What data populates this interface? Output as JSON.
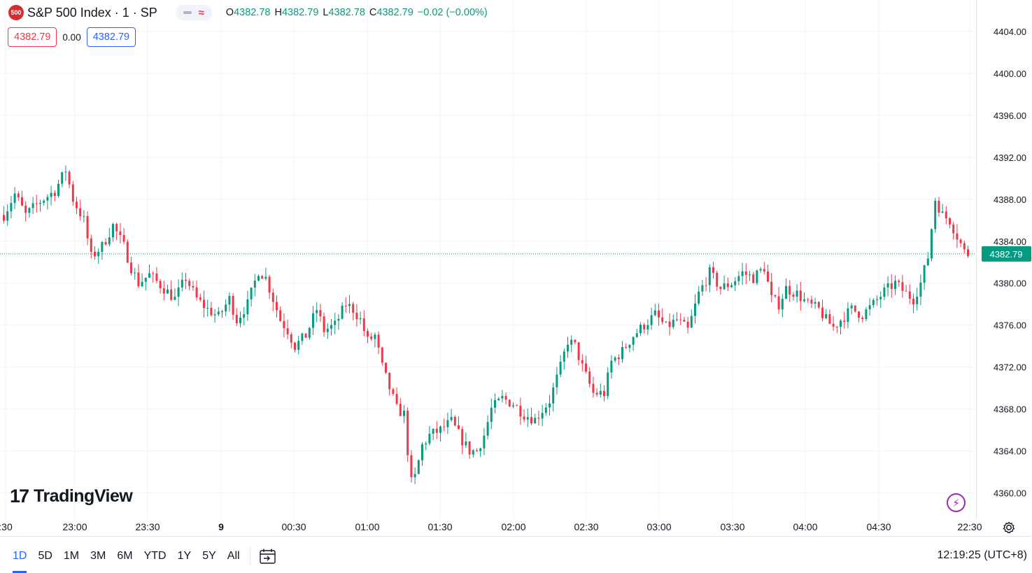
{
  "symbol": {
    "logo_text": "500",
    "name": "S&P 500 Index · 1 · SP",
    "ohlc": {
      "o_label": "O",
      "o": "4382.78",
      "h_label": "H",
      "h": "4382.79",
      "l_label": "L",
      "l": "4382.78",
      "c_label": "C",
      "c": "4382.79",
      "change": "−0.02 (−0.00%)"
    },
    "sell_price": "4382.79",
    "spread": "0.00",
    "buy_price": "4382.79"
  },
  "price_axis": {
    "ticks": [
      "4404.00",
      "4400.00",
      "4396.00",
      "4392.00",
      "4388.00",
      "4384.00",
      "4380.00",
      "4376.00",
      "4372.00",
      "4368.00",
      "4364.00",
      "4360.00"
    ],
    "last_price": "4382.79"
  },
  "time_axis": {
    "ticks": [
      ":30",
      "23:00",
      "23:30",
      "9",
      "00:30",
      "01:00",
      "01:30",
      "02:00",
      "02:30",
      "03:00",
      "03:30",
      "04:00",
      "04:30",
      "22:30"
    ]
  },
  "branding": {
    "logo_mark": "17",
    "name": "TradingView"
  },
  "bottom_bar": {
    "ranges": [
      "1D",
      "5D",
      "1M",
      "3M",
      "6M",
      "YTD",
      "1Y",
      "5Y",
      "All"
    ],
    "active_range": "1D",
    "clock": "12:19:25 (UTC+8)"
  },
  "colors": {
    "up": "#089981",
    "down": "#f23645",
    "grid": "#f0f3fa",
    "last_price_line": "#089981",
    "accent": "#2962ff"
  },
  "chart_data": {
    "type": "candlestick",
    "interval": "1 minute",
    "ylim": [
      4357.5,
      4407.0
    ],
    "x_ticks": [
      ":30",
      "23:00",
      "23:30",
      "9",
      "00:30",
      "01:00",
      "01:30",
      "02:00",
      "02:30",
      "03:00",
      "03:30",
      "04:00",
      "04:30",
      "22:30"
    ],
    "y_ticks": [
      4404,
      4400,
      4396,
      4392,
      4388,
      4384,
      4380,
      4376,
      4372,
      4368,
      4364,
      4360
    ],
    "last_price": 4382.79,
    "close_path": [
      [
        0,
        4386.5
      ],
      [
        3,
        4388.5
      ],
      [
        6,
        4386.5
      ],
      [
        10,
        4387.8
      ],
      [
        14,
        4388.8
      ],
      [
        17,
        4390.8
      ],
      [
        19,
        4388.0
      ],
      [
        22,
        4386.0
      ],
      [
        24,
        4382.5
      ],
      [
        27,
        4383.5
      ],
      [
        30,
        4385.5
      ],
      [
        33,
        4383.5
      ],
      [
        35,
        4381.5
      ],
      [
        37,
        4380.0
      ],
      [
        40,
        4380.8
      ],
      [
        44,
        4379.5
      ],
      [
        47,
        4378.5
      ],
      [
        50,
        4380.5
      ],
      [
        53,
        4378.5
      ],
      [
        56,
        4377.5
      ],
      [
        59,
        4376.8
      ],
      [
        62,
        4378.5
      ],
      [
        64,
        4376.5
      ],
      [
        67,
        4378.0
      ],
      [
        70,
        4381.2
      ],
      [
        72,
        4380.5
      ],
      [
        74,
        4378.5
      ],
      [
        76,
        4376.5
      ],
      [
        78,
        4375.5
      ],
      [
        80,
        4374.0
      ],
      [
        83,
        4375.0
      ],
      [
        86,
        4377.5
      ],
      [
        88,
        4375.5
      ],
      [
        91,
        4376.0
      ],
      [
        94,
        4378.0
      ],
      [
        96,
        4377.5
      ],
      [
        98,
        4376.5
      ],
      [
        100,
        4374.5
      ],
      [
        102,
        4375.0
      ],
      [
        104,
        4372.0
      ],
      [
        106,
        4370.0
      ],
      [
        108,
        4368.0
      ],
      [
        110,
        4367.5
      ],
      [
        111,
        4364.0
      ],
      [
        112,
        4361.0
      ],
      [
        113,
        4361.5
      ],
      [
        115,
        4364.5
      ],
      [
        117,
        4365.5
      ],
      [
        120,
        4366.0
      ],
      [
        123,
        4366.8
      ],
      [
        126,
        4365.0
      ],
      [
        128,
        4364.0
      ],
      [
        130,
        4364.0
      ],
      [
        132,
        4365.5
      ],
      [
        134,
        4368.0
      ],
      [
        137,
        4369.0
      ],
      [
        140,
        4368.5
      ],
      [
        143,
        4367.5
      ],
      [
        146,
        4367.0
      ],
      [
        150,
        4368.8
      ],
      [
        153,
        4372.0
      ],
      [
        155,
        4374.5
      ],
      [
        157,
        4374.0
      ],
      [
        159,
        4372.0
      ],
      [
        162,
        4369.5
      ],
      [
        165,
        4369.5
      ],
      [
        167,
        4372.5
      ],
      [
        170,
        4373.5
      ],
      [
        173,
        4375.0
      ],
      [
        176,
        4376.0
      ],
      [
        179,
        4377.0
      ],
      [
        182,
        4375.8
      ],
      [
        185,
        4376.5
      ],
      [
        188,
        4375.5
      ],
      [
        191,
        4379.0
      ],
      [
        194,
        4381.0
      ],
      [
        197,
        4379.5
      ],
      [
        200,
        4380.0
      ],
      [
        203,
        4381.0
      ],
      [
        206,
        4380.5
      ],
      [
        209,
        4381.5
      ],
      [
        211,
        4378.5
      ],
      [
        213,
        4378.0
      ],
      [
        215,
        4379.5
      ],
      [
        218,
        4379.0
      ],
      [
        221,
        4378.0
      ],
      [
        224,
        4377.5
      ],
      [
        226,
        4376.5
      ],
      [
        228,
        4375.8
      ],
      [
        230,
        4376.5
      ],
      [
        233,
        4377.5
      ],
      [
        236,
        4377.0
      ],
      [
        239,
        4378.0
      ],
      [
        242,
        4379.2
      ],
      [
        245,
        4380.0
      ],
      [
        248,
        4379.0
      ],
      [
        250,
        4378.5
      ],
      [
        252,
        4380.0
      ],
      [
        254,
        4382.5
      ],
      [
        256,
        4388.0
      ],
      [
        258,
        4386.5
      ],
      [
        260,
        4386.0
      ],
      [
        262,
        4384.5
      ],
      [
        264,
        4383.0
      ],
      [
        265,
        4382.8
      ]
    ]
  }
}
